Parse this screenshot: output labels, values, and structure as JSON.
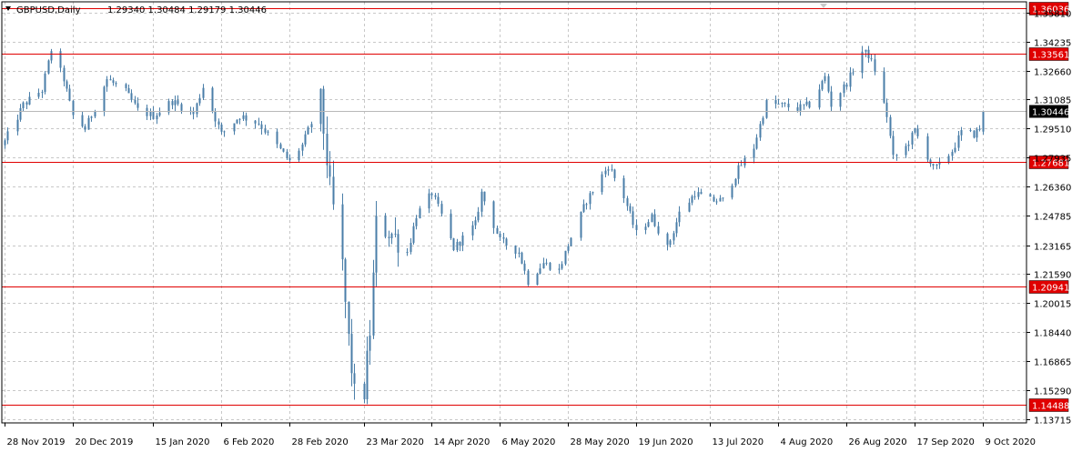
{
  "header": {
    "symbol": "GBPUSD,Daily",
    "ohlc": "1.29340 1.30484 1.29179 1.30446"
  },
  "colors": {
    "candle": "#4a7ea8",
    "level_line": "#e00000",
    "level_label_bg": "#e00000",
    "price_label_bg": "#000000",
    "grid": "#c8c8c8"
  },
  "chart_data": {
    "type": "candlestick",
    "grid": true,
    "y_axis": {
      "ticks": [
        1.3581,
        1.34235,
        1.3266,
        1.31085,
        1.2951,
        1.27935,
        1.2636,
        1.24785,
        1.23165,
        1.2159,
        1.20015,
        1.1844,
        1.16865,
        1.1529,
        1.13715
      ],
      "tick_labels": [
        "1.35810",
        "1.34235",
        "1.32660",
        "1.31085",
        "1.29510",
        "1.27935",
        "1.26360",
        "1.24785",
        "1.23165",
        "1.21590",
        "1.20015",
        "1.18440",
        "1.16865",
        "1.15290",
        "1.13715"
      ],
      "range": [
        1.135,
        1.364
      ]
    },
    "x_axis": {
      "range": [
        "2019-11-28",
        "2020-10-22"
      ],
      "tick_dates": [
        "2019-11-28",
        "2019-12-20",
        "2020-01-15",
        "2020-02-06",
        "2020-02-28",
        "2020-03-23",
        "2020-04-14",
        "2020-05-06",
        "2020-05-28",
        "2020-06-19",
        "2020-07-13",
        "2020-08-04",
        "2020-08-26",
        "2020-09-17",
        "2020-10-09"
      ],
      "tick_labels": [
        "28 Nov 2019",
        "20 Dec 2019",
        "15 Jan 2020",
        "6 Feb 2020",
        "28 Feb 2020",
        "23 Mar 2020",
        "14 Apr 2020",
        "6 May 2020",
        "28 May 2020",
        "19 Jun 2020",
        "13 Jul 2020",
        "4 Aug 2020",
        "26 Aug 2020",
        "17 Sep 2020",
        "9 Oct 2020"
      ]
    },
    "horizontal_levels": [
      {
        "value": 1.36036,
        "label": "1.36036"
      },
      {
        "value": 1.33561,
        "label": "1.33561"
      },
      {
        "value": 1.27681,
        "label": "1.27681"
      },
      {
        "value": 1.20941,
        "label": "1.20941"
      },
      {
        "value": 1.14488,
        "label": "1.14488"
      }
    ],
    "current_price": {
      "value": 1.30446,
      "label": "1.30446"
    },
    "anchors": [
      {
        "date": "2019-11-28",
        "close": 1.288
      },
      {
        "date": "2019-12-04",
        "close": 1.308
      },
      {
        "date": "2019-12-10",
        "close": 1.316
      },
      {
        "date": "2019-12-13",
        "close": 1.338
      },
      {
        "date": "2019-12-17",
        "close": 1.322
      },
      {
        "date": "2019-12-20",
        "close": 1.302
      },
      {
        "date": "2019-12-24",
        "close": 1.295
      },
      {
        "date": "2019-12-31",
        "close": 1.322
      },
      {
        "date": "2020-01-06",
        "close": 1.315
      },
      {
        "date": "2020-01-10",
        "close": 1.305
      },
      {
        "date": "2020-01-15",
        "close": 1.302
      },
      {
        "date": "2020-01-21",
        "close": 1.31
      },
      {
        "date": "2020-01-28",
        "close": 1.303
      },
      {
        "date": "2020-01-31",
        "close": 1.318
      },
      {
        "date": "2020-02-06",
        "close": 1.292
      },
      {
        "date": "2020-02-12",
        "close": 1.302
      },
      {
        "date": "2020-02-18",
        "close": 1.298
      },
      {
        "date": "2020-02-21",
        "close": 1.292
      },
      {
        "date": "2020-02-28",
        "close": 1.277
      },
      {
        "date": "2020-03-03",
        "close": 1.286
      },
      {
        "date": "2020-03-09",
        "close": 1.31
      },
      {
        "date": "2020-03-12",
        "close": 1.262
      },
      {
        "date": "2020-03-16",
        "close": 1.22
      },
      {
        "date": "2020-03-18",
        "close": 1.18
      },
      {
        "date": "2020-03-20",
        "close": 1.15
      },
      {
        "date": "2020-03-23",
        "close": 1.152
      },
      {
        "date": "2020-03-25",
        "close": 1.185
      },
      {
        "date": "2020-03-27",
        "close": 1.243
      },
      {
        "date": "2020-04-01",
        "close": 1.238
      },
      {
        "date": "2020-04-06",
        "close": 1.228
      },
      {
        "date": "2020-04-09",
        "close": 1.248
      },
      {
        "date": "2020-04-14",
        "close": 1.26
      },
      {
        "date": "2020-04-17",
        "close": 1.248
      },
      {
        "date": "2020-04-21",
        "close": 1.23
      },
      {
        "date": "2020-04-28",
        "close": 1.243
      },
      {
        "date": "2020-04-30",
        "close": 1.26
      },
      {
        "date": "2020-05-06",
        "close": 1.234
      },
      {
        "date": "2020-05-12",
        "close": 1.228
      },
      {
        "date": "2020-05-15",
        "close": 1.212
      },
      {
        "date": "2020-05-20",
        "close": 1.222
      },
      {
        "date": "2020-05-25",
        "close": 1.218
      },
      {
        "date": "2020-05-28",
        "close": 1.232
      },
      {
        "date": "2020-06-03",
        "close": 1.256
      },
      {
        "date": "2020-06-10",
        "close": 1.275
      },
      {
        "date": "2020-06-15",
        "close": 1.258
      },
      {
        "date": "2020-06-19",
        "close": 1.238
      },
      {
        "date": "2020-06-24",
        "close": 1.247
      },
      {
        "date": "2020-06-29",
        "close": 1.23
      },
      {
        "date": "2020-07-03",
        "close": 1.249
      },
      {
        "date": "2020-07-08",
        "close": 1.26
      },
      {
        "date": "2020-07-13",
        "close": 1.256
      },
      {
        "date": "2020-07-17",
        "close": 1.256
      },
      {
        "date": "2020-07-22",
        "close": 1.273
      },
      {
        "date": "2020-07-27",
        "close": 1.285
      },
      {
        "date": "2020-07-31",
        "close": 1.309
      },
      {
        "date": "2020-08-04",
        "close": 1.308
      },
      {
        "date": "2020-08-10",
        "close": 1.306
      },
      {
        "date": "2020-08-14",
        "close": 1.308
      },
      {
        "date": "2020-08-19",
        "close": 1.323
      },
      {
        "date": "2020-08-21",
        "close": 1.308
      },
      {
        "date": "2020-08-26",
        "close": 1.32
      },
      {
        "date": "2020-08-31",
        "close": 1.337
      },
      {
        "date": "2020-09-02",
        "close": 1.335
      },
      {
        "date": "2020-09-04",
        "close": 1.327
      },
      {
        "date": "2020-09-08",
        "close": 1.302
      },
      {
        "date": "2020-09-10",
        "close": 1.279
      },
      {
        "date": "2020-09-14",
        "close": 1.285
      },
      {
        "date": "2020-09-17",
        "close": 1.294
      },
      {
        "date": "2020-09-21",
        "close": 1.28
      },
      {
        "date": "2020-09-23",
        "close": 1.273
      },
      {
        "date": "2020-09-25",
        "close": 1.275
      },
      {
        "date": "2020-09-29",
        "close": 1.283
      },
      {
        "date": "2020-10-02",
        "close": 1.293
      },
      {
        "date": "2020-10-06",
        "close": 1.292
      },
      {
        "date": "2020-10-08",
        "close": 1.295
      },
      {
        "date": "2020-10-09",
        "close": 1.304
      }
    ]
  }
}
